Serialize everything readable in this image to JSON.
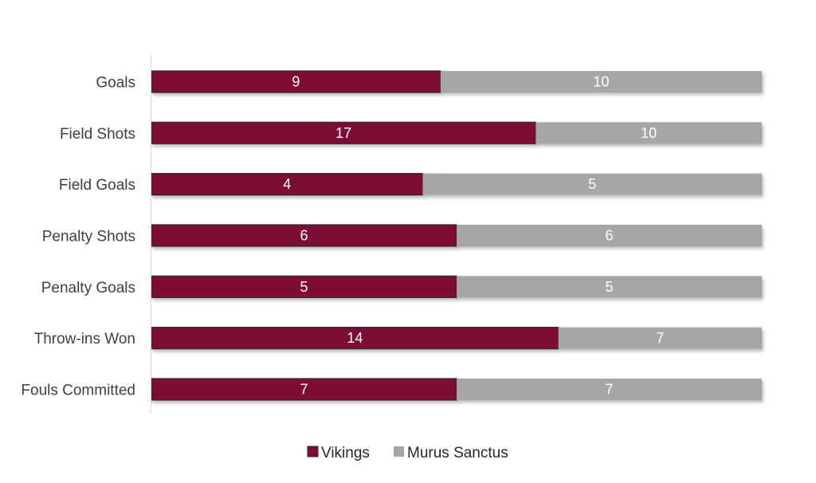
{
  "chart_data": {
    "type": "bar",
    "orientation": "horizontal",
    "stacked": "percent",
    "categories": [
      "Goals",
      "Field Shots",
      "Field Goals",
      "Penalty Shots",
      "Penalty Goals",
      "Throw-ins Won",
      "Fouls Committed"
    ],
    "series": [
      {
        "name": "Vikings",
        "color": "#7e0b34",
        "values": [
          9,
          17,
          4,
          6,
          5,
          14,
          7
        ]
      },
      {
        "name": "Murus Sanctus",
        "color": "#a6a6a6",
        "values": [
          10,
          10,
          5,
          6,
          5,
          7,
          7
        ]
      }
    ],
    "data_labels": true,
    "legend_position": "bottom",
    "grid": false,
    "title": "",
    "xlabel": "",
    "ylabel": ""
  }
}
